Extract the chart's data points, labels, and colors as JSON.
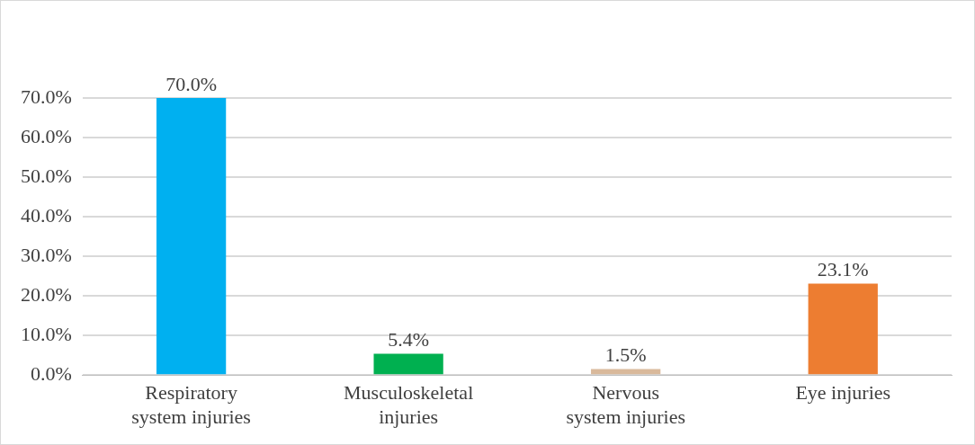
{
  "chart_data": {
    "type": "bar",
    "categories": [
      "Respiratory system injuries",
      "Musculoskeletal injuries",
      "Nervous system injuries",
      "Eye injuries"
    ],
    "values": [
      70.0,
      5.4,
      1.5,
      23.1
    ],
    "colors": [
      "#00b0f0",
      "#00b050",
      "#d9b99b",
      "#ed7d31"
    ],
    "value_labels": [
      "70.0%",
      "5.4%",
      "1.5%",
      "23.1%"
    ],
    "ylim": [
      0,
      70
    ],
    "yticks": [
      {
        "value": 0,
        "label": "0.0%"
      },
      {
        "value": 10,
        "label": "10.0%"
      },
      {
        "value": 20,
        "label": "20.0%"
      },
      {
        "value": 30,
        "label": "30.0%"
      },
      {
        "value": 40,
        "label": "40.0%"
      },
      {
        "value": 50,
        "label": "50.0%"
      },
      {
        "value": 60,
        "label": "60.0%"
      },
      {
        "value": 70,
        "label": "70.0%"
      }
    ],
    "grid": "y",
    "legend": false
  }
}
